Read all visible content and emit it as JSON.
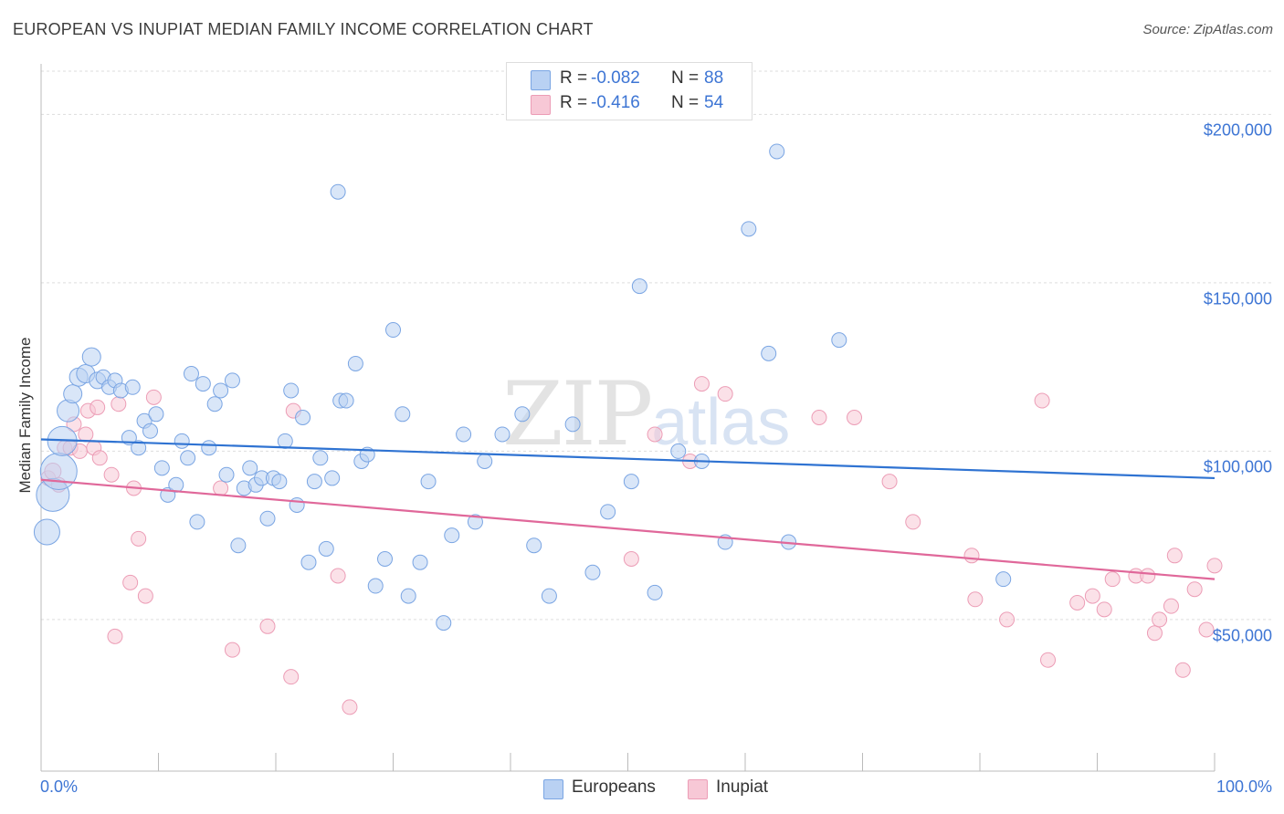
{
  "title": "EUROPEAN VS INUPIAT MEDIAN FAMILY INCOME CORRELATION CHART",
  "source": "Source: ZipAtlas.com",
  "watermark": {
    "zip": "ZIP",
    "atlas": "atlas"
  },
  "colors": {
    "european_fill": "#b9d1f3",
    "european_stroke": "#7aa5e3",
    "european_line": "#2f73d2",
    "inupiat_fill": "#f7c8d6",
    "inupiat_stroke": "#ec9db6",
    "inupiat_line": "#e0689a",
    "tick_text": "#3d75d4",
    "grid": "#dddddd"
  },
  "legend": {
    "rows": [
      {
        "r_label": "R =",
        "r_value": "-0.082",
        "n_label": "N =",
        "n_value": "88"
      },
      {
        "r_label": "R =",
        "r_value": "-0.416",
        "n_label": "N =",
        "n_value": "54"
      }
    ]
  },
  "bottom_legend": [
    "Europeans",
    "Inupiat"
  ],
  "chart_data": {
    "type": "scatter",
    "title": "EUROPEAN VS INUPIAT MEDIAN FAMILY INCOME CORRELATION CHART",
    "xlabel": "",
    "ylabel": "Median Family Income",
    "xlim": [
      0,
      100
    ],
    "ylim": [
      5000,
      215000
    ],
    "x_tick_labels": [
      "0.0%",
      "100.0%"
    ],
    "y_ticks": [
      50000,
      100000,
      150000,
      200000
    ],
    "y_tick_labels": [
      "$50,000",
      "$100,000",
      "$150,000",
      "$200,000"
    ],
    "grid": true,
    "legend_position": "top-center",
    "series": [
      {
        "name": "Europeans",
        "trend": {
          "x0": 0,
          "y0": 103500,
          "x1": 100,
          "y1": 92000
        },
        "points": [
          [
            0.5,
            76000,
            14
          ],
          [
            1.0,
            87000,
            18
          ],
          [
            1.5,
            94000,
            20
          ],
          [
            1.8,
            103000,
            16
          ],
          [
            2.3,
            112000,
            12
          ],
          [
            2.7,
            117000,
            10
          ],
          [
            3.2,
            122000,
            10
          ],
          [
            3.8,
            123000,
            10
          ],
          [
            4.3,
            128000,
            10
          ],
          [
            4.8,
            121000,
            9
          ],
          [
            5.3,
            122000,
            8
          ],
          [
            5.8,
            119000,
            8
          ],
          [
            6.3,
            121000,
            8
          ],
          [
            6.8,
            118000,
            8
          ],
          [
            7.5,
            104000,
            8
          ],
          [
            7.8,
            119000,
            8
          ],
          [
            8.3,
            101000,
            8
          ],
          [
            8.8,
            109000,
            8
          ],
          [
            9.3,
            106000,
            8
          ],
          [
            9.8,
            111000,
            8
          ],
          [
            10.3,
            95000,
            8
          ],
          [
            10.8,
            87000,
            8
          ],
          [
            11.5,
            90000,
            8
          ],
          [
            12.0,
            103000,
            8
          ],
          [
            12.5,
            98000,
            8
          ],
          [
            12.8,
            123000,
            8
          ],
          [
            13.3,
            79000,
            8
          ],
          [
            13.8,
            120000,
            8
          ],
          [
            14.3,
            101000,
            8
          ],
          [
            14.8,
            114000,
            8
          ],
          [
            15.3,
            118000,
            8
          ],
          [
            15.8,
            93000,
            8
          ],
          [
            16.3,
            121000,
            8
          ],
          [
            16.8,
            72000,
            8
          ],
          [
            17.3,
            89000,
            8
          ],
          [
            17.8,
            95000,
            8
          ],
          [
            18.3,
            90000,
            8
          ],
          [
            18.8,
            92000,
            8
          ],
          [
            19.3,
            80000,
            8
          ],
          [
            19.8,
            92000,
            8
          ],
          [
            20.3,
            91000,
            8
          ],
          [
            20.8,
            103000,
            8
          ],
          [
            21.3,
            118000,
            8
          ],
          [
            21.8,
            84000,
            8
          ],
          [
            22.3,
            110000,
            8
          ],
          [
            22.8,
            67000,
            8
          ],
          [
            23.3,
            91000,
            8
          ],
          [
            23.8,
            98000,
            8
          ],
          [
            24.3,
            71000,
            8
          ],
          [
            24.8,
            92000,
            8
          ],
          [
            25.3,
            177000,
            8
          ],
          [
            25.5,
            115000,
            8
          ],
          [
            26.0,
            115000,
            8
          ],
          [
            26.8,
            126000,
            8
          ],
          [
            27.3,
            97000,
            8
          ],
          [
            27.8,
            99000,
            8
          ],
          [
            28.5,
            60000,
            8
          ],
          [
            29.3,
            68000,
            8
          ],
          [
            30.0,
            136000,
            8
          ],
          [
            30.8,
            111000,
            8
          ],
          [
            31.3,
            57000,
            8
          ],
          [
            32.3,
            67000,
            8
          ],
          [
            33.0,
            91000,
            8
          ],
          [
            34.3,
            49000,
            8
          ],
          [
            35.0,
            75000,
            8
          ],
          [
            36.0,
            105000,
            8
          ],
          [
            37.0,
            79000,
            8
          ],
          [
            37.8,
            97000,
            8
          ],
          [
            39.3,
            105000,
            8
          ],
          [
            41.0,
            111000,
            8
          ],
          [
            42.0,
            72000,
            8
          ],
          [
            43.3,
            57000,
            8
          ],
          [
            45.3,
            108000,
            8
          ],
          [
            47.0,
            64000,
            8
          ],
          [
            48.3,
            82000,
            8
          ],
          [
            50.3,
            91000,
            8
          ],
          [
            51.0,
            149000,
            8
          ],
          [
            52.3,
            58000,
            8
          ],
          [
            54.3,
            100000,
            8
          ],
          [
            56.3,
            97000,
            8
          ],
          [
            58.3,
            73000,
            8
          ],
          [
            60.3,
            166000,
            8
          ],
          [
            62.0,
            129000,
            8
          ],
          [
            62.7,
            189000,
            8
          ],
          [
            63.7,
            73000,
            8
          ],
          [
            68.0,
            133000,
            8
          ],
          [
            82.0,
            62000,
            8
          ]
        ]
      },
      {
        "name": "Inupiat",
        "trend": {
          "x0": 0,
          "y0": 91500,
          "x1": 100,
          "y1": 62000
        },
        "points": [
          [
            0.6,
            92000,
            8
          ],
          [
            1.0,
            94000,
            9
          ],
          [
            1.5,
            90000,
            8
          ],
          [
            2.0,
            101000,
            8
          ],
          [
            2.5,
            101000,
            8
          ],
          [
            2.8,
            108000,
            8
          ],
          [
            3.3,
            100000,
            8
          ],
          [
            3.8,
            105000,
            8
          ],
          [
            4.0,
            112000,
            8
          ],
          [
            4.5,
            101000,
            8
          ],
          [
            4.8,
            113000,
            8
          ],
          [
            5.0,
            98000,
            8
          ],
          [
            6.0,
            93000,
            8
          ],
          [
            6.3,
            45000,
            8
          ],
          [
            6.6,
            114000,
            8
          ],
          [
            7.6,
            61000,
            8
          ],
          [
            7.9,
            89000,
            8
          ],
          [
            8.3,
            74000,
            8
          ],
          [
            8.9,
            57000,
            8
          ],
          [
            9.6,
            116000,
            8
          ],
          [
            15.3,
            89000,
            8
          ],
          [
            16.3,
            41000,
            8
          ],
          [
            19.3,
            48000,
            8
          ],
          [
            21.3,
            33000,
            8
          ],
          [
            21.5,
            112000,
            8
          ],
          [
            25.3,
            63000,
            8
          ],
          [
            26.3,
            24000,
            8
          ],
          [
            50.3,
            68000,
            8
          ],
          [
            52.3,
            105000,
            8
          ],
          [
            55.3,
            97000,
            8
          ],
          [
            56.3,
            120000,
            8
          ],
          [
            58.3,
            117000,
            8
          ],
          [
            66.3,
            110000,
            8
          ],
          [
            69.3,
            110000,
            8
          ],
          [
            72.3,
            91000,
            8
          ],
          [
            74.3,
            79000,
            8
          ],
          [
            79.3,
            69000,
            8
          ],
          [
            79.6,
            56000,
            8
          ],
          [
            82.3,
            50000,
            8
          ],
          [
            85.3,
            115000,
            8
          ],
          [
            85.8,
            38000,
            8
          ],
          [
            88.3,
            55000,
            8
          ],
          [
            89.6,
            57000,
            8
          ],
          [
            90.6,
            53000,
            8
          ],
          [
            91.3,
            62000,
            8
          ],
          [
            93.3,
            63000,
            8
          ],
          [
            94.3,
            63000,
            8
          ],
          [
            94.9,
            46000,
            8
          ],
          [
            95.3,
            50000,
            8
          ],
          [
            96.3,
            54000,
            8
          ],
          [
            96.6,
            69000,
            8
          ],
          [
            97.3,
            35000,
            8
          ],
          [
            98.3,
            59000,
            8
          ],
          [
            99.3,
            47000,
            8
          ],
          [
            100.0,
            66000,
            8
          ]
        ]
      }
    ]
  }
}
